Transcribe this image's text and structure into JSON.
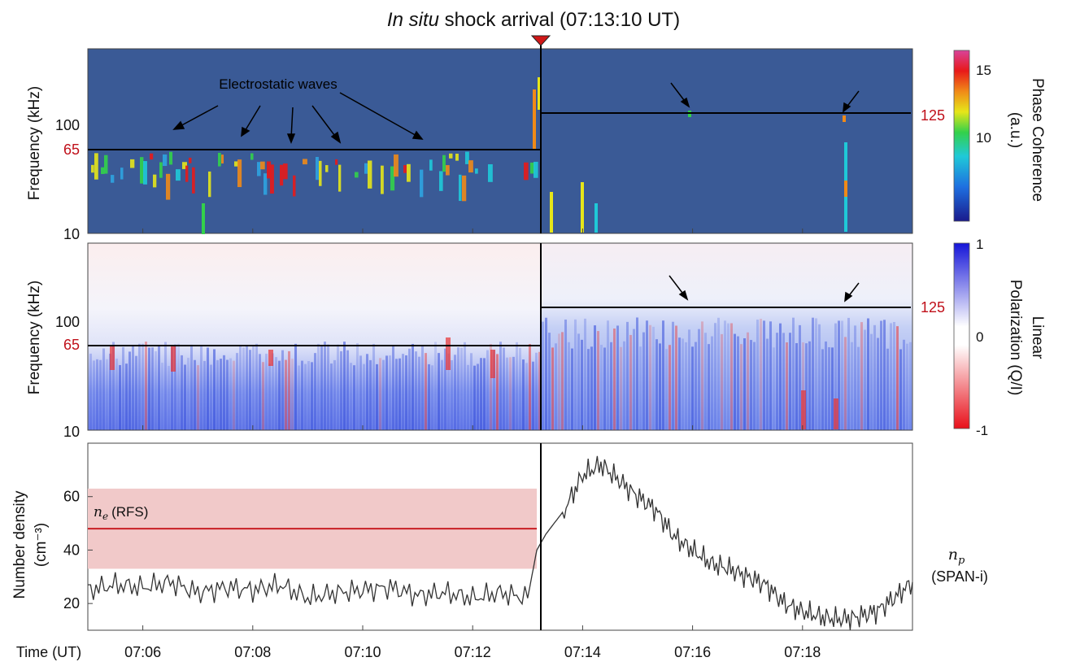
{
  "figure": {
    "title_italic": "In situ",
    "title_rest": " shock arrival (07:13:10 UT)",
    "colors": {
      "background_panel": "#3a5a96",
      "threshold_label": "#c0101a",
      "ne_line": "#c81e24",
      "ne_band": "#f1c9c9",
      "np_line": "#333333",
      "shock_marker": "#d01818"
    }
  },
  "chart_data": [
    {
      "type": "heatmap",
      "panel": "phase-coherence",
      "ylabel": "Frequency (kHz)",
      "y_scale": "log",
      "ylim": [
        10,
        300
      ],
      "y_ticks": [
        "10",
        "100"
      ],
      "y_marker_left": "65",
      "y_marker_right": "125",
      "xlim": [
        "07:05",
        "07:20"
      ],
      "shock_time": "07:13:10",
      "thresholds": [
        {
          "x_start": "07:05",
          "x_end": "07:13:10",
          "freq_khz": 65
        },
        {
          "x_start": "07:13:10",
          "x_end": "07:20",
          "freq_khz": 125
        }
      ],
      "annotation": "Electrostatic waves",
      "colorbar": {
        "label_lines": [
          "Phase Coherence",
          "(a.u.)"
        ],
        "ticks": [
          "15",
          "10"
        ],
        "range": [
          5,
          16
        ]
      }
    },
    {
      "type": "heatmap",
      "panel": "linear-polarization",
      "ylabel": "Frequency (kHz)",
      "y_scale": "log",
      "ylim": [
        10,
        300
      ],
      "y_ticks": [
        "10",
        "100"
      ],
      "y_marker_left": "65",
      "y_marker_right": "125",
      "xlim": [
        "07:05",
        "07:20"
      ],
      "colorbar": {
        "label_lines": [
          "Linear",
          "Polarization  (Q/I)"
        ],
        "ticks": [
          "1",
          "0",
          "-1"
        ],
        "range": [
          -1,
          1
        ]
      }
    },
    {
      "type": "line",
      "panel": "number-density",
      "ylabel_lines": [
        "Number density",
        "(cm⁻³)"
      ],
      "ylim": [
        10,
        80
      ],
      "y_ticks": [
        "20",
        "40",
        "60"
      ],
      "xlabel": "Time (UT)",
      "x_ticks": [
        "07:06",
        "07:08",
        "07:10",
        "07:12",
        "07:14",
        "07:16",
        "07:18"
      ],
      "xlim": [
        "07:05",
        "07:20"
      ],
      "series": [
        {
          "name": "(RFS)",
          "symbol": "n",
          "subscript": "e",
          "x": [
            "07:05",
            "07:13:10"
          ],
          "values": [
            48,
            48
          ],
          "band": [
            33,
            63
          ]
        },
        {
          "name": "(SPAN-i)",
          "symbol": "n",
          "subscript": "p",
          "x": [
            "07:05:00",
            "07:05:30",
            "07:06:00",
            "07:06:30",
            "07:07:00",
            "07:07:30",
            "07:08:00",
            "07:08:30",
            "07:09:00",
            "07:09:30",
            "07:10:00",
            "07:10:30",
            "07:11:00",
            "07:11:30",
            "07:12:00",
            "07:12:30",
            "07:13:00",
            "07:13:10",
            "07:13:20",
            "07:13:40",
            "07:14:00",
            "07:14:20",
            "07:14:40",
            "07:15:00",
            "07:15:20",
            "07:15:40",
            "07:16:00",
            "07:16:20",
            "07:16:40",
            "07:17:00",
            "07:17:20",
            "07:17:40",
            "07:18:00",
            "07:18:20",
            "07:18:40",
            "07:19:00",
            "07:19:20",
            "07:19:40",
            "07:20:00"
          ],
          "values": [
            25,
            27,
            26,
            28,
            24,
            26,
            25,
            27,
            22,
            24,
            25,
            26,
            23,
            24,
            22,
            24,
            22,
            40,
            46,
            55,
            68,
            72,
            66,
            60,
            55,
            45,
            40,
            35,
            33,
            30,
            27,
            20,
            17,
            15,
            14,
            15,
            17,
            22,
            28
          ]
        }
      ]
    }
  ]
}
